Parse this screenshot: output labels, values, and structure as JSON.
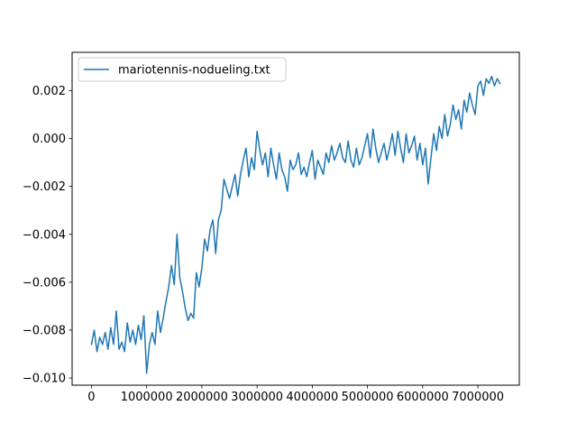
{
  "chart_data": {
    "type": "line",
    "title": "",
    "xlabel": "",
    "ylabel": "",
    "xlim": [
      -350000,
      7750000
    ],
    "ylim": [
      -0.0103,
      0.0036
    ],
    "x_ticks": [
      0,
      1000000,
      2000000,
      3000000,
      4000000,
      5000000,
      6000000,
      7000000
    ],
    "x_tick_labels": [
      "0",
      "1000000",
      "2000000",
      "3000000",
      "4000000",
      "5000000",
      "6000000",
      "7000000"
    ],
    "y_ticks": [
      -0.01,
      -0.008,
      -0.006,
      -0.004,
      -0.002,
      0.0,
      0.002
    ],
    "y_tick_labels": [
      "−0.010",
      "−0.008",
      "−0.006",
      "−0.004",
      "−0.002",
      "0.000",
      "0.002"
    ],
    "grid": false,
    "legend": {
      "position": "upper-left",
      "entries": [
        "mariotennis-nodueling.txt"
      ]
    },
    "series": [
      {
        "name": "mariotennis-nodueling.txt",
        "color": "#1f77b4",
        "x": [
          0,
          50000,
          100000,
          150000,
          200000,
          250000,
          300000,
          350000,
          400000,
          450000,
          500000,
          550000,
          600000,
          650000,
          700000,
          750000,
          800000,
          850000,
          900000,
          950000,
          1000000,
          1050000,
          1100000,
          1150000,
          1200000,
          1250000,
          1300000,
          1350000,
          1400000,
          1450000,
          1500000,
          1550000,
          1600000,
          1650000,
          1700000,
          1750000,
          1800000,
          1850000,
          1900000,
          1950000,
          2000000,
          2050000,
          2100000,
          2150000,
          2200000,
          2250000,
          2300000,
          2350000,
          2400000,
          2450000,
          2500000,
          2550000,
          2600000,
          2650000,
          2700000,
          2750000,
          2800000,
          2850000,
          2900000,
          2950000,
          3000000,
          3050000,
          3100000,
          3150000,
          3200000,
          3250000,
          3300000,
          3350000,
          3400000,
          3450000,
          3500000,
          3550000,
          3600000,
          3650000,
          3700000,
          3750000,
          3800000,
          3850000,
          3900000,
          3950000,
          4000000,
          4050000,
          4100000,
          4150000,
          4200000,
          4250000,
          4300000,
          4350000,
          4400000,
          4450000,
          4500000,
          4550000,
          4600000,
          4650000,
          4700000,
          4750000,
          4800000,
          4850000,
          4900000,
          4950000,
          5000000,
          5050000,
          5100000,
          5150000,
          5200000,
          5250000,
          5300000,
          5350000,
          5400000,
          5450000,
          5500000,
          5550000,
          5600000,
          5650000,
          5700000,
          5750000,
          5800000,
          5850000,
          5900000,
          5950000,
          6000000,
          6050000,
          6100000,
          6150000,
          6200000,
          6250000,
          6300000,
          6350000,
          6400000,
          6450000,
          6500000,
          6550000,
          6600000,
          6650000,
          6700000,
          6750000,
          6800000,
          6850000,
          6900000,
          6950000,
          7000000,
          7050000,
          7100000,
          7150000,
          7200000,
          7250000,
          7300000,
          7350000,
          7400000
        ],
        "values": [
          -0.0086,
          -0.008,
          -0.0089,
          -0.0083,
          -0.0086,
          -0.0081,
          -0.0088,
          -0.0079,
          -0.0086,
          -0.0072,
          -0.0088,
          -0.0085,
          -0.0089,
          -0.0077,
          -0.0085,
          -0.008,
          -0.0086,
          -0.0078,
          -0.0084,
          -0.0074,
          -0.0098,
          -0.0086,
          -0.0081,
          -0.0086,
          -0.0072,
          -0.0081,
          -0.0075,
          -0.0068,
          -0.0062,
          -0.0053,
          -0.0061,
          -0.004,
          -0.0058,
          -0.0064,
          -0.0071,
          -0.0076,
          -0.0073,
          -0.0075,
          -0.0056,
          -0.0062,
          -0.0054,
          -0.0042,
          -0.0047,
          -0.0038,
          -0.0034,
          -0.0048,
          -0.0034,
          -0.003,
          -0.0017,
          -0.0021,
          -0.0025,
          -0.002,
          -0.0015,
          -0.0024,
          -0.0015,
          -0.0009,
          -0.0004,
          -0.0016,
          -0.0008,
          -0.0013,
          0.0003,
          -0.0005,
          -0.0011,
          -0.0006,
          -0.0016,
          -0.0004,
          -0.0011,
          -0.0017,
          -0.0006,
          -0.0013,
          -0.0016,
          -0.0022,
          -0.0009,
          -0.0013,
          -0.0011,
          -0.0006,
          -0.0015,
          -0.0012,
          -0.0016,
          -0.001,
          -0.0005,
          -0.0017,
          -0.0009,
          -0.0012,
          -0.0015,
          -0.0006,
          -0.001,
          -0.0003,
          -0.0009,
          -0.0006,
          -0.0002,
          -0.0008,
          -0.001,
          -0.0001,
          -0.0009,
          -0.0012,
          -0.0004,
          -0.0011,
          -0.0008,
          -0.0003,
          0.0002,
          -0.0008,
          0.0004,
          -0.0004,
          -0.001,
          -0.0006,
          -0.0002,
          -0.0009,
          -0.0004,
          0.0002,
          -0.0007,
          0.0003,
          -0.0004,
          -0.001,
          0.0002,
          -0.0006,
          -0.0003,
          0.0001,
          -0.0009,
          -0.0002,
          -0.0011,
          -0.0004,
          -0.0019,
          -0.0008,
          0.0002,
          -0.0005,
          0.0005,
          0.0,
          0.001,
          0.0001,
          0.0006,
          0.0014,
          0.0008,
          0.0012,
          0.0004,
          0.0016,
          0.0011,
          0.0019,
          0.0014,
          0.001,
          0.0022,
          0.0024,
          0.0018,
          0.0025,
          0.0023,
          0.0026,
          0.0022,
          0.0025,
          0.0023
        ]
      }
    ]
  }
}
